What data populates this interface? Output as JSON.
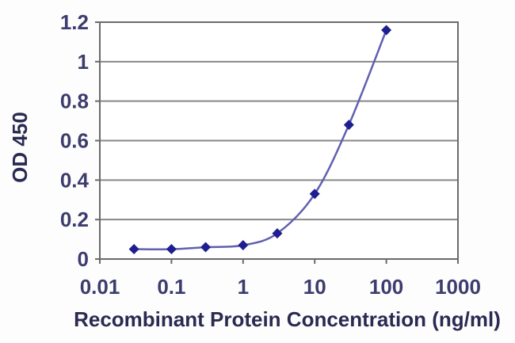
{
  "chart_data": {
    "type": "line",
    "title": "",
    "xlabel": "Recombinant Protein Concentration (ng/ml)",
    "ylabel": "OD 450",
    "x_scale": "log",
    "x": [
      0.03,
      0.1,
      0.3,
      1,
      3,
      10,
      30,
      100
    ],
    "y": [
      0.05,
      0.05,
      0.06,
      0.07,
      0.13,
      0.33,
      0.68,
      1.16
    ],
    "x_ticks": [
      "0.01",
      "0.1",
      "1",
      "10",
      "100",
      "1000"
    ],
    "x_tick_values": [
      0.01,
      0.1,
      1,
      10,
      100,
      1000
    ],
    "y_ticks": [
      "0",
      "0.2",
      "0.4",
      "0.6",
      "0.8",
      "1",
      "1.2"
    ],
    "y_tick_values": [
      0,
      0.2,
      0.4,
      0.6,
      0.8,
      1,
      1.2
    ],
    "xlim": [
      0.01,
      1000
    ],
    "ylim": [
      0,
      1.2
    ],
    "grid": "horizontal",
    "legend": "none",
    "marker": "diamond",
    "colors": {
      "line": "#6060b0",
      "marker": "#1e1e8f",
      "gridline": "#878787",
      "axis_border": "#6a6a6a",
      "tick_label": "#3c3c6e",
      "axis_title": "#2a2a52",
      "plot_background": "#ffffff"
    }
  }
}
